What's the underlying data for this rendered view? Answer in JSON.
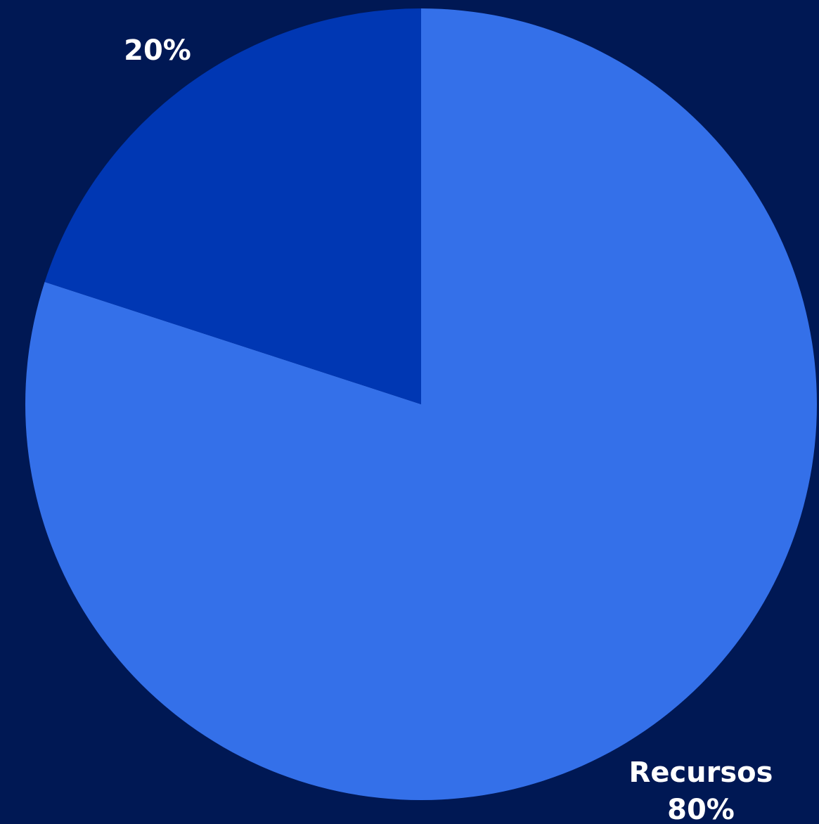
{
  "chart_data": {
    "type": "pie",
    "title": "",
    "slices": [
      {
        "name": "Recursos",
        "value": 80,
        "label": "80%",
        "color": "#3470E9"
      },
      {
        "name": "",
        "value": 20,
        "label": "20%",
        "color": "#0037B3"
      }
    ],
    "start_angle_deg": 0,
    "direction": "clockwise",
    "background_color": "#001854",
    "label_color": "#FFFFFF"
  }
}
